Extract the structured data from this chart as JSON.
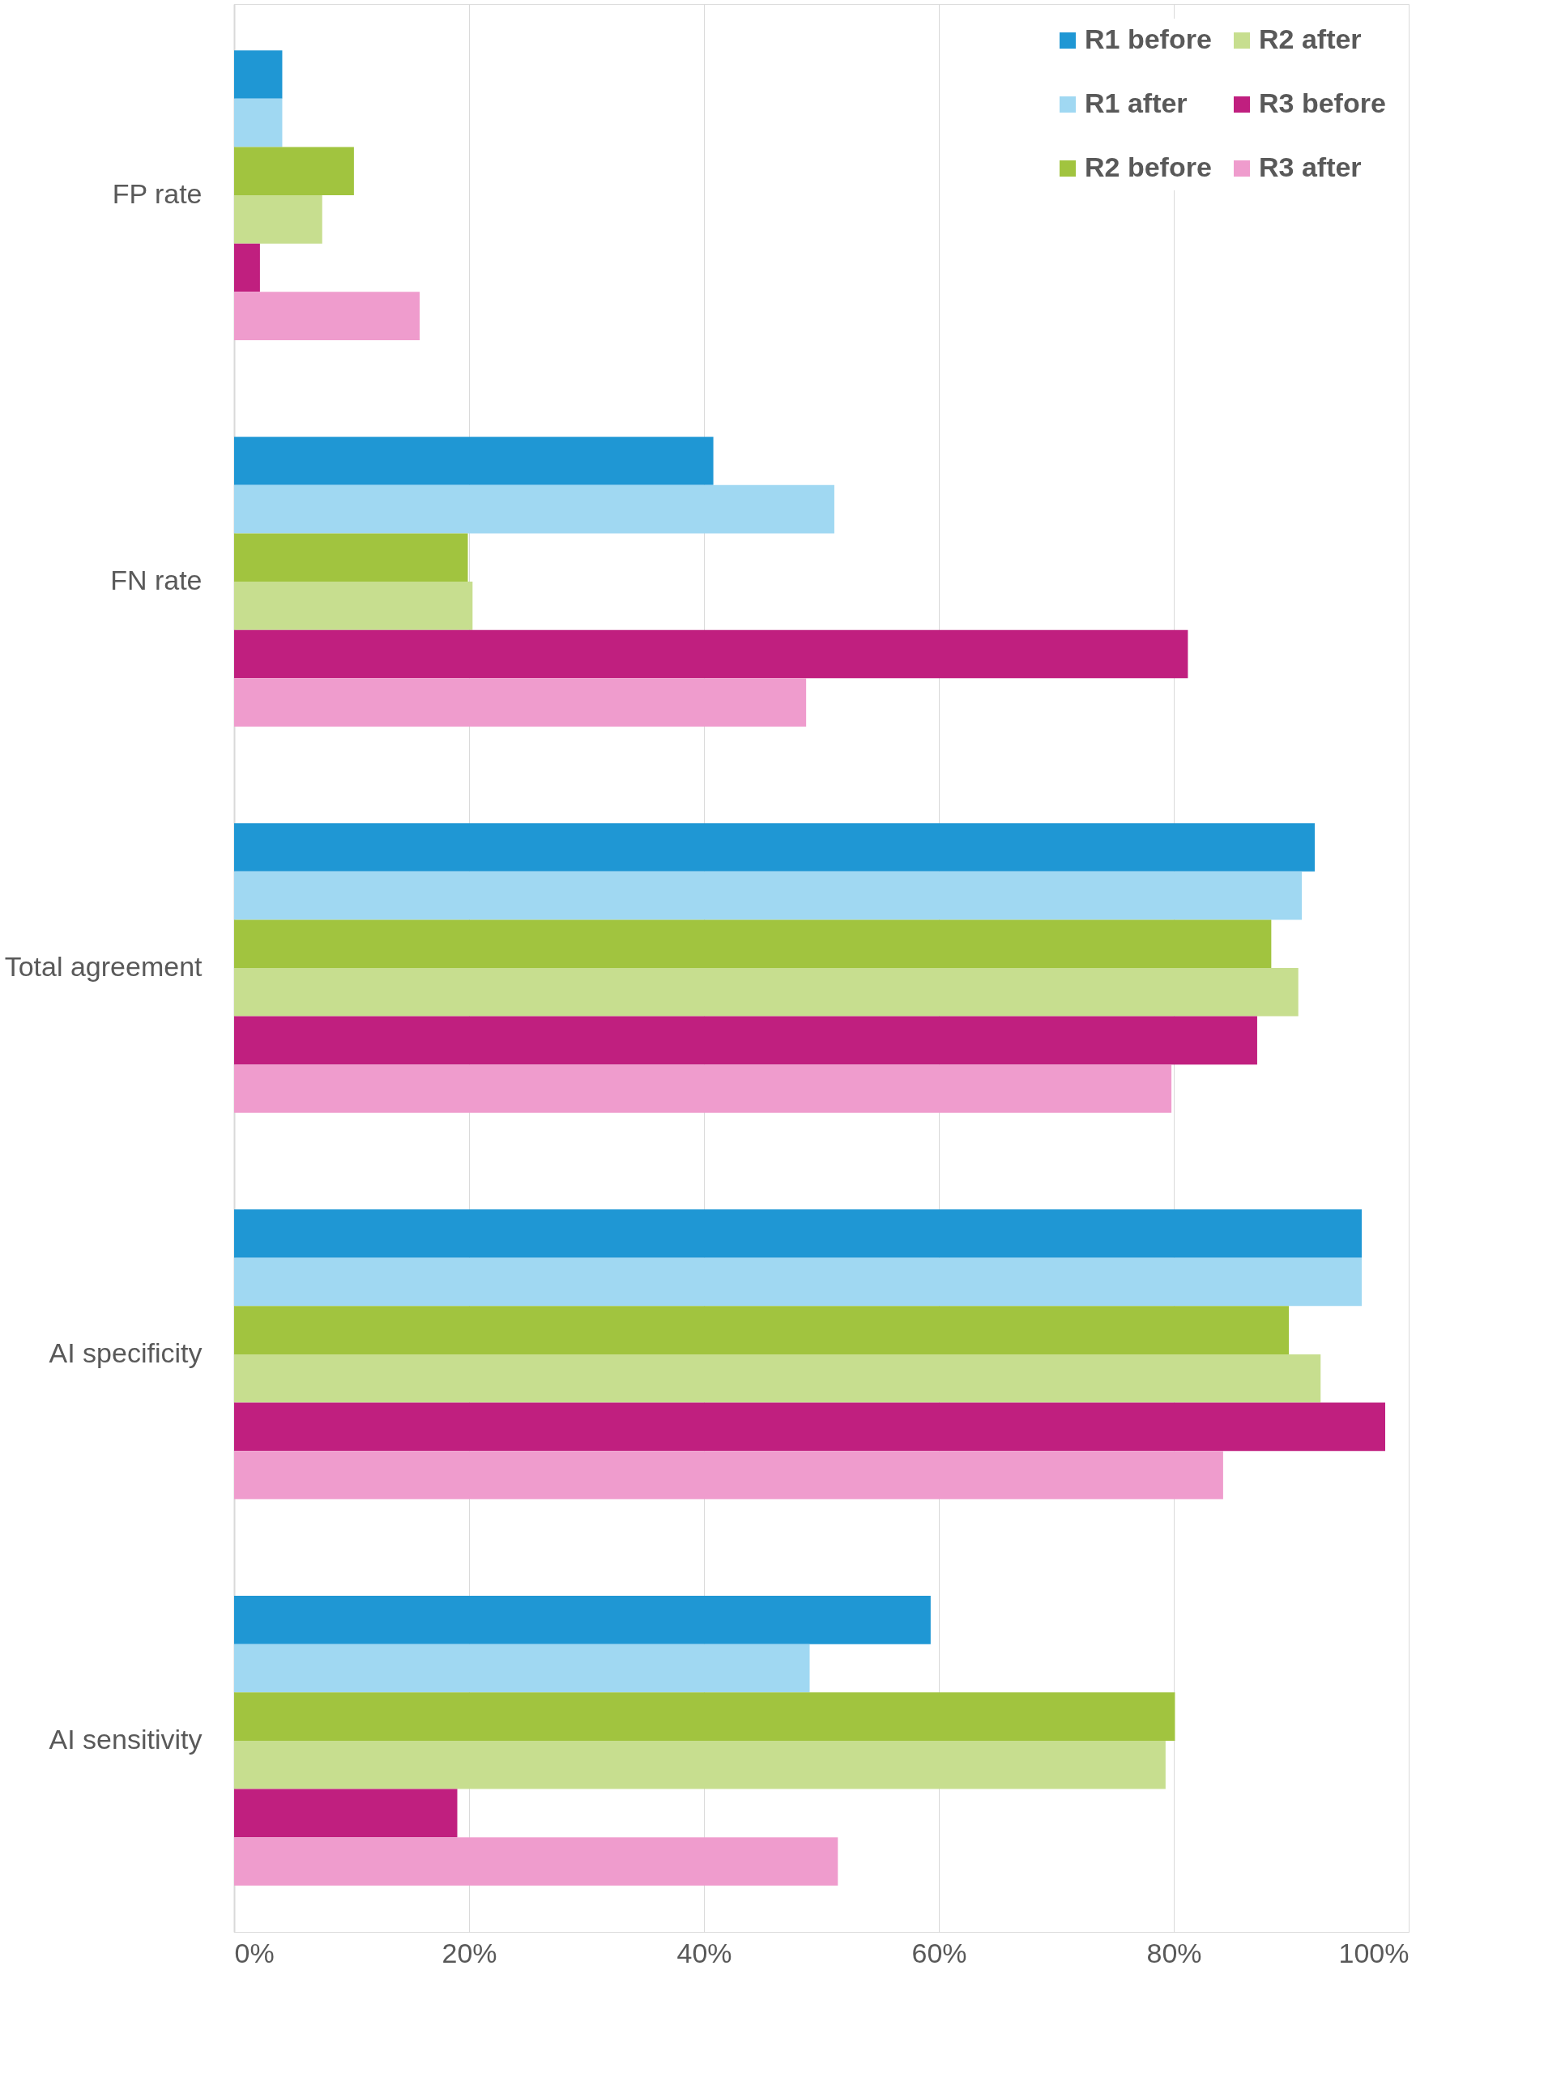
{
  "chart_data": {
    "type": "bar",
    "orientation": "horizontal",
    "categories": [
      "FP rate",
      "FN rate",
      "Total agreement",
      "AI specificity",
      "AI sensitivity"
    ],
    "series": [
      {
        "name": "R1 before",
        "color": "#1f97d4",
        "values": [
          4.1,
          40.8,
          92.0,
          96.0,
          59.3
        ]
      },
      {
        "name": "R1 after",
        "color": "#a0d8f2",
        "values": [
          4.1,
          51.1,
          90.9,
          96.0,
          49.0
        ]
      },
      {
        "name": "R2 before",
        "color": "#a1c43f",
        "values": [
          10.2,
          19.9,
          88.3,
          89.8,
          80.1
        ]
      },
      {
        "name": "R2 after",
        "color": "#c7de8f",
        "values": [
          7.5,
          20.3,
          90.6,
          92.5,
          79.3
        ]
      },
      {
        "name": "R3 before",
        "color": "#c01f7f",
        "values": [
          2.2,
          81.2,
          87.1,
          98.0,
          19.0
        ]
      },
      {
        "name": "R3 after",
        "color": "#ef9ccd",
        "values": [
          15.8,
          48.7,
          79.8,
          84.2,
          51.4
        ]
      }
    ],
    "xlim": [
      0,
      100
    ],
    "xticks": [
      {
        "value": 0,
        "label": "0%"
      },
      {
        "value": 20,
        "label": "20%"
      },
      {
        "value": 40,
        "label": "40%"
      },
      {
        "value": 60,
        "label": "60%"
      },
      {
        "value": 80,
        "label": "80%"
      },
      {
        "value": 100,
        "label": "100%"
      }
    ],
    "grid": "x",
    "legend": "top right"
  }
}
